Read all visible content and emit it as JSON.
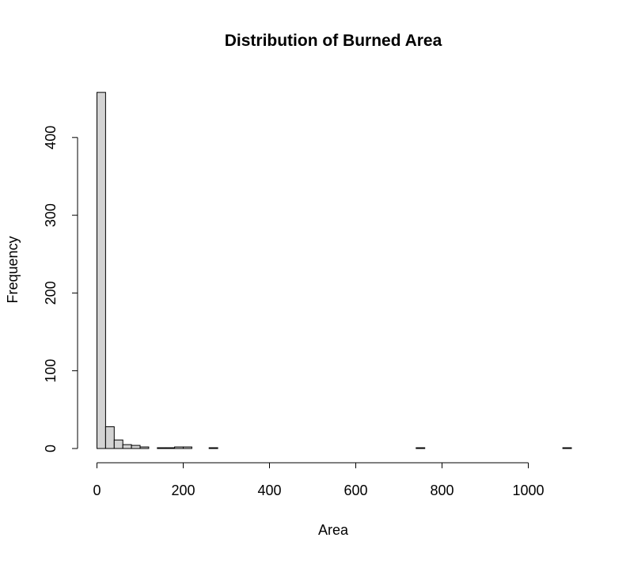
{
  "chart_data": {
    "type": "bar",
    "title": "Distribution of Burned Area",
    "xlabel": "Area",
    "ylabel": "Frequency",
    "bin_width": 20,
    "xlim": [
      0,
      1100
    ],
    "ylim": [
      0,
      460
    ],
    "x_ticks": [
      0,
      200,
      400,
      600,
      800,
      1000
    ],
    "y_ticks": [
      0,
      100,
      200,
      300,
      400
    ],
    "grid": false,
    "legend": "none",
    "bins": [
      {
        "start": 0,
        "end": 20,
        "count": 458
      },
      {
        "start": 20,
        "end": 40,
        "count": 28
      },
      {
        "start": 40,
        "end": 60,
        "count": 11
      },
      {
        "start": 60,
        "end": 80,
        "count": 5
      },
      {
        "start": 80,
        "end": 100,
        "count": 4
      },
      {
        "start": 100,
        "end": 120,
        "count": 2
      },
      {
        "start": 140,
        "end": 160,
        "count": 1
      },
      {
        "start": 160,
        "end": 180,
        "count": 1
      },
      {
        "start": 180,
        "end": 200,
        "count": 2
      },
      {
        "start": 200,
        "end": 220,
        "count": 2
      },
      {
        "start": 260,
        "end": 280,
        "count": 1
      },
      {
        "start": 740,
        "end": 760,
        "count": 1
      },
      {
        "start": 1080,
        "end": 1100,
        "count": 1
      }
    ],
    "colors": {
      "bar_fill": "#d3d3d3",
      "bar_stroke": "#000000",
      "axis": "#000000"
    }
  }
}
